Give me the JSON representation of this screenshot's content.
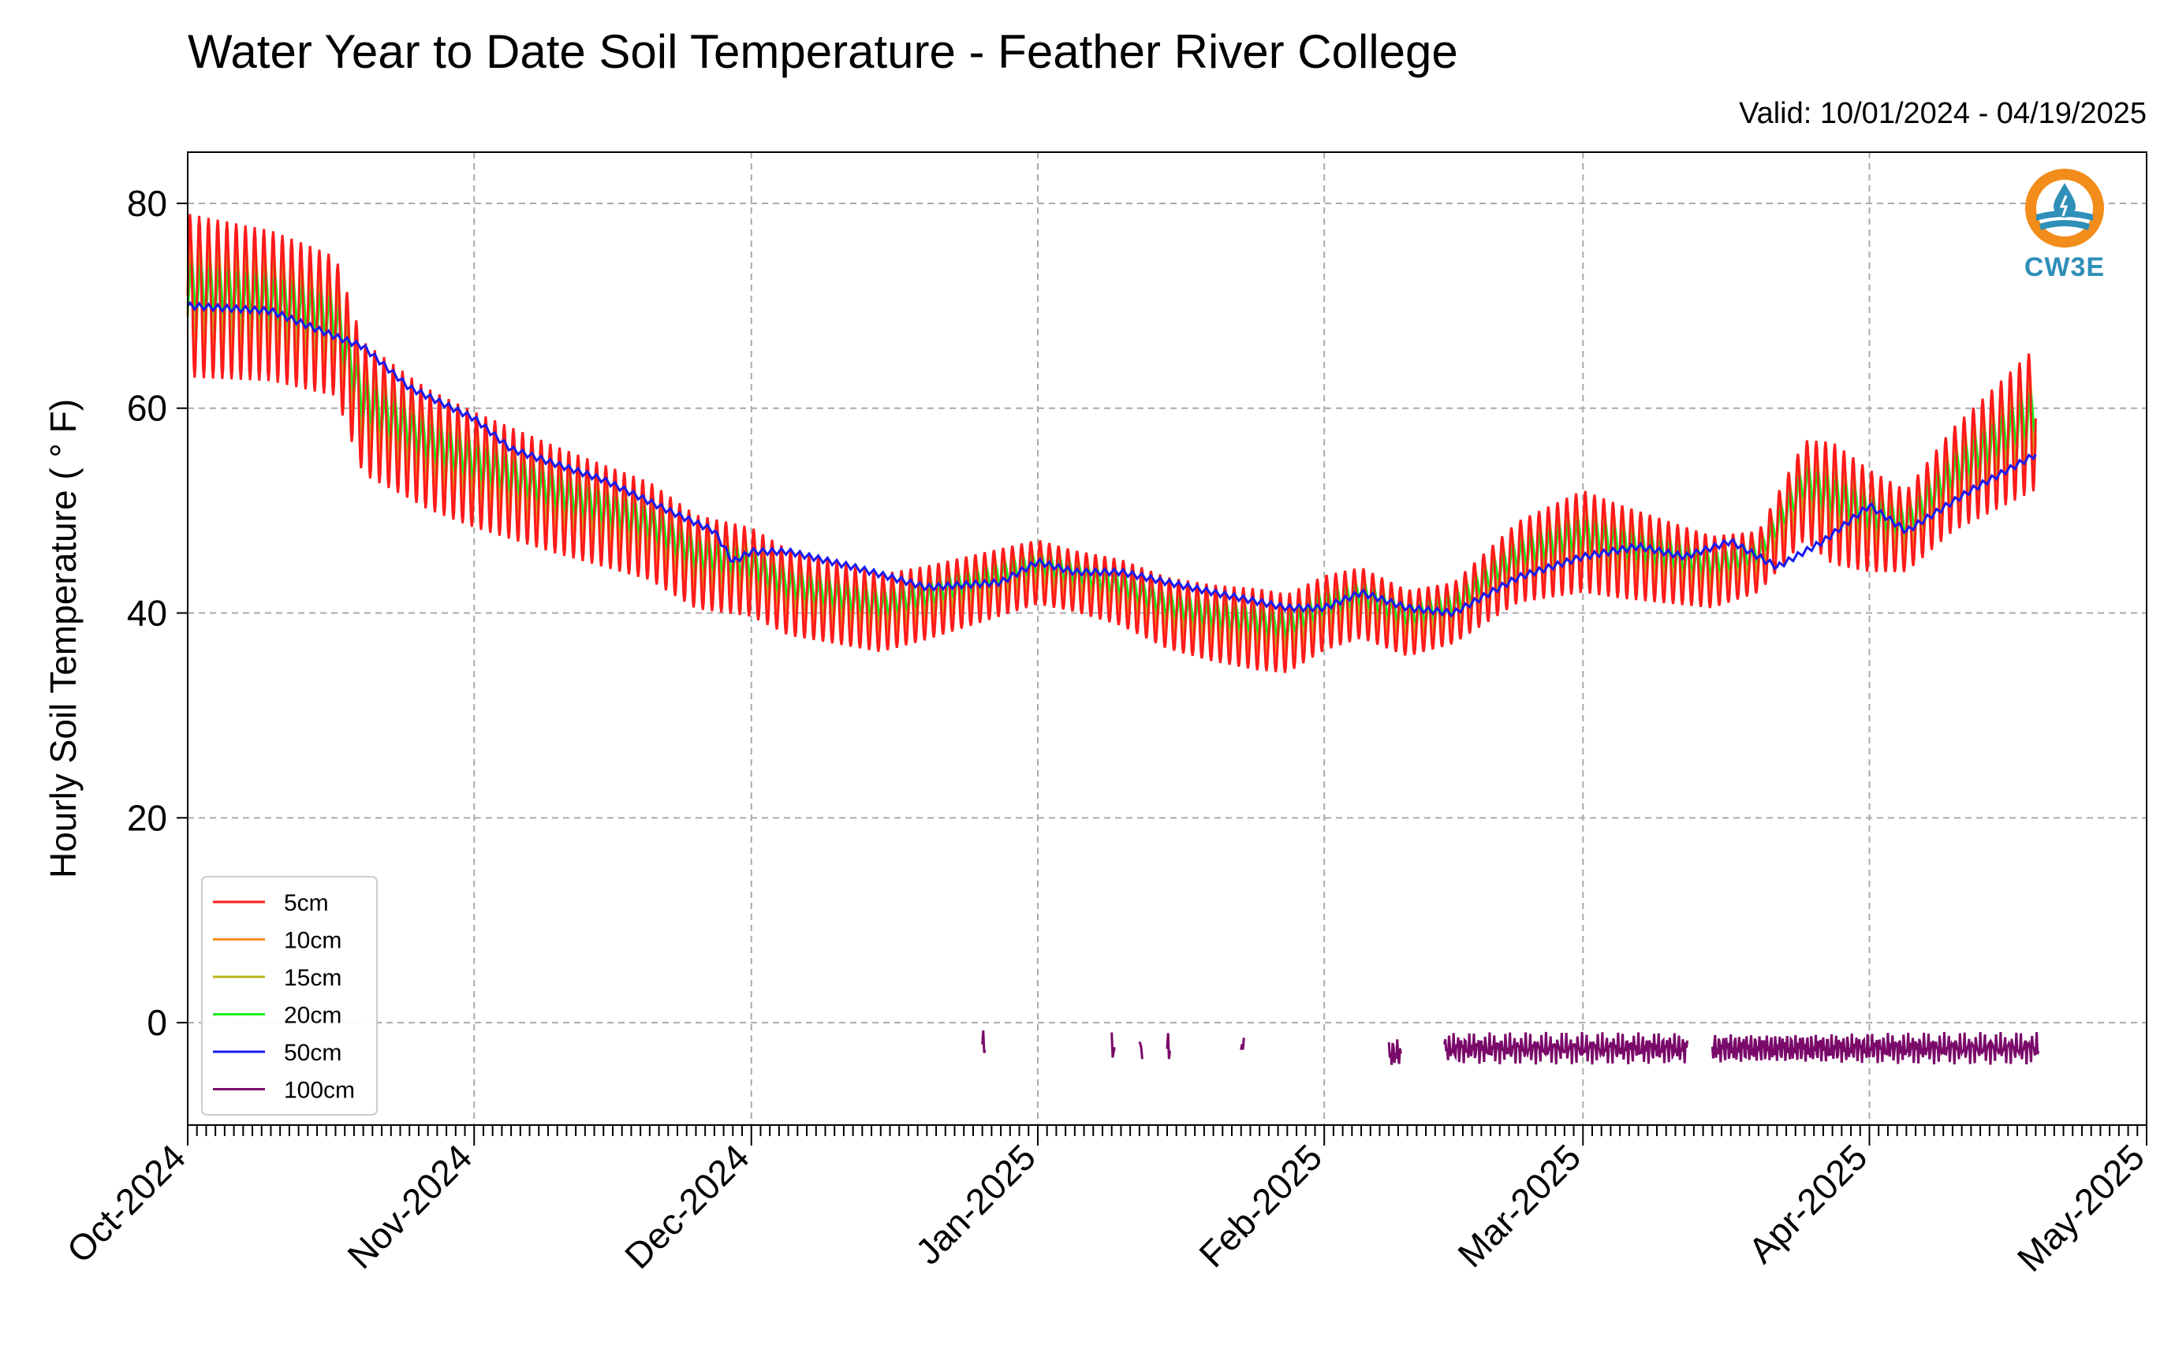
{
  "header": {
    "title": "Water Year to Date Soil Temperature - Feather River College",
    "valid": "Valid: 10/01/2024 - 04/19/2025"
  },
  "logo": {
    "text": "CW3E",
    "icon": "water-drop-logo-icon"
  },
  "chart_data": {
    "type": "line",
    "title": "Water Year to Date Soil Temperature - Feather River College",
    "ylabel": "Hourly Soil Temperature ( ° F)",
    "xlabel": "",
    "ylim": [
      -10,
      85
    ],
    "yticks": [
      0,
      20,
      40,
      60,
      80
    ],
    "xlim": [
      "2024-10-01",
      "2025-05-01"
    ],
    "xticks": [
      "2024-10-01",
      "2024-11-01",
      "2024-12-01",
      "2025-01-01",
      "2025-02-01",
      "2025-03-01",
      "2025-04-01",
      "2025-05-01"
    ],
    "xtick_labels": [
      "Oct-2024",
      "Nov-2024",
      "Dec-2024",
      "Jan-2025",
      "Feb-2025",
      "Mar-2025",
      "Apr-2025",
      "May-2025"
    ],
    "grid": true,
    "legend_position": "lower-left",
    "series": [
      {
        "name": "5cm",
        "color": "#ff1a1a",
        "amp": 1.0,
        "baseline": [
          [
            "2024-10-01",
            71
          ],
          [
            "2024-10-10",
            70
          ],
          [
            "2024-10-17",
            68
          ],
          [
            "2024-10-20",
            60
          ],
          [
            "2024-10-27",
            56
          ],
          [
            "2024-11-01",
            54
          ],
          [
            "2024-11-10",
            51
          ],
          [
            "2024-11-20",
            48
          ],
          [
            "2024-11-25",
            45
          ],
          [
            "2024-12-01",
            44
          ],
          [
            "2024-12-05",
            42
          ],
          [
            "2024-12-10",
            41
          ],
          [
            "2024-12-15",
            40
          ],
          [
            "2024-12-20",
            41
          ],
          [
            "2024-12-28",
            43
          ],
          [
            "2025-01-01",
            44
          ],
          [
            "2025-01-10",
            42
          ],
          [
            "2025-01-15",
            40
          ],
          [
            "2025-01-20",
            39
          ],
          [
            "2025-01-28",
            38
          ],
          [
            "2025-02-01",
            40
          ],
          [
            "2025-02-05",
            41
          ],
          [
            "2025-02-10",
            39
          ],
          [
            "2025-02-15",
            40
          ],
          [
            "2025-02-22",
            45
          ],
          [
            "2025-03-01",
            47
          ],
          [
            "2025-03-05",
            46
          ],
          [
            "2025-03-10",
            45
          ],
          [
            "2025-03-15",
            44
          ],
          [
            "2025-03-20",
            45
          ],
          [
            "2025-03-25",
            52
          ],
          [
            "2025-04-01",
            49
          ],
          [
            "2025-04-05",
            48
          ],
          [
            "2025-04-10",
            53
          ],
          [
            "2025-04-19",
            59
          ]
        ],
        "swing": [
          [
            "2024-10-01",
            8
          ],
          [
            "2024-10-15",
            7
          ],
          [
            "2024-10-25",
            6
          ],
          [
            "2024-11-15",
            5
          ],
          [
            "2024-12-10",
            4
          ],
          [
            "2025-01-05",
            3
          ],
          [
            "2025-01-25",
            4
          ],
          [
            "2025-02-15",
            3
          ],
          [
            "2025-03-01",
            5
          ],
          [
            "2025-03-20",
            3
          ],
          [
            "2025-03-28",
            6
          ],
          [
            "2025-04-05",
            4
          ],
          [
            "2025-04-19",
            7
          ]
        ]
      },
      {
        "name": "10cm",
        "color": "#ff8c1a",
        "amp": 0.7
      },
      {
        "name": "15cm",
        "color": "#b5b51a",
        "amp": 0.5
      },
      {
        "name": "20cm",
        "color": "#1aee1a",
        "amp": 0.3
      },
      {
        "name": "50cm",
        "color": "#1a1aee",
        "values": [
          [
            "2024-10-01",
            70
          ],
          [
            "2024-10-10",
            69.5
          ],
          [
            "2024-10-17",
            67
          ],
          [
            "2024-10-20",
            66
          ],
          [
            "2024-10-25",
            62
          ],
          [
            "2024-11-01",
            59
          ],
          [
            "2024-11-05",
            56
          ],
          [
            "2024-11-15",
            53
          ],
          [
            "2024-11-22",
            50
          ],
          [
            "2024-11-27",
            48
          ],
          [
            "2024-11-29",
            45
          ],
          [
            "2024-12-01",
            46
          ],
          [
            "2024-12-05",
            46
          ],
          [
            "2024-12-12",
            44.5
          ],
          [
            "2024-12-20",
            42.5
          ],
          [
            "2024-12-28",
            43
          ],
          [
            "2025-01-01",
            45
          ],
          [
            "2025-01-05",
            44
          ],
          [
            "2025-01-10",
            44
          ],
          [
            "2025-01-20",
            42
          ],
          [
            "2025-01-28",
            40.5
          ],
          [
            "2025-02-01",
            40.5
          ],
          [
            "2025-02-05",
            42
          ],
          [
            "2025-02-10",
            40.5
          ],
          [
            "2025-02-15",
            40
          ],
          [
            "2025-02-22",
            43.5
          ],
          [
            "2025-03-01",
            45.5
          ],
          [
            "2025-03-07",
            46.5
          ],
          [
            "2025-03-12",
            45.5
          ],
          [
            "2025-03-17",
            47
          ],
          [
            "2025-03-22",
            44.5
          ],
          [
            "2025-03-27",
            47
          ],
          [
            "2025-04-01",
            50.5
          ],
          [
            "2025-04-05",
            48
          ],
          [
            "2025-04-12",
            52
          ],
          [
            "2025-04-19",
            55.5
          ]
        ]
      },
      {
        "name": "100cm",
        "color": "#7a0a6a",
        "segments": [
          [
            "2024-12-26",
            "2024-12-26",
            -2
          ],
          [
            "2025-01-09",
            "2025-01-09",
            -2.5
          ],
          [
            "2025-01-12",
            "2025-01-12",
            -2.3
          ],
          [
            "2025-01-15",
            "2025-01-15",
            -2.5
          ],
          [
            "2025-01-23",
            "2025-01-23",
            -2
          ],
          [
            "2025-02-08",
            "2025-02-09",
            -3
          ],
          [
            "2025-02-14",
            "2025-03-12",
            -2.5
          ],
          [
            "2025-03-15",
            "2025-04-19",
            -2.5
          ]
        ]
      }
    ]
  }
}
